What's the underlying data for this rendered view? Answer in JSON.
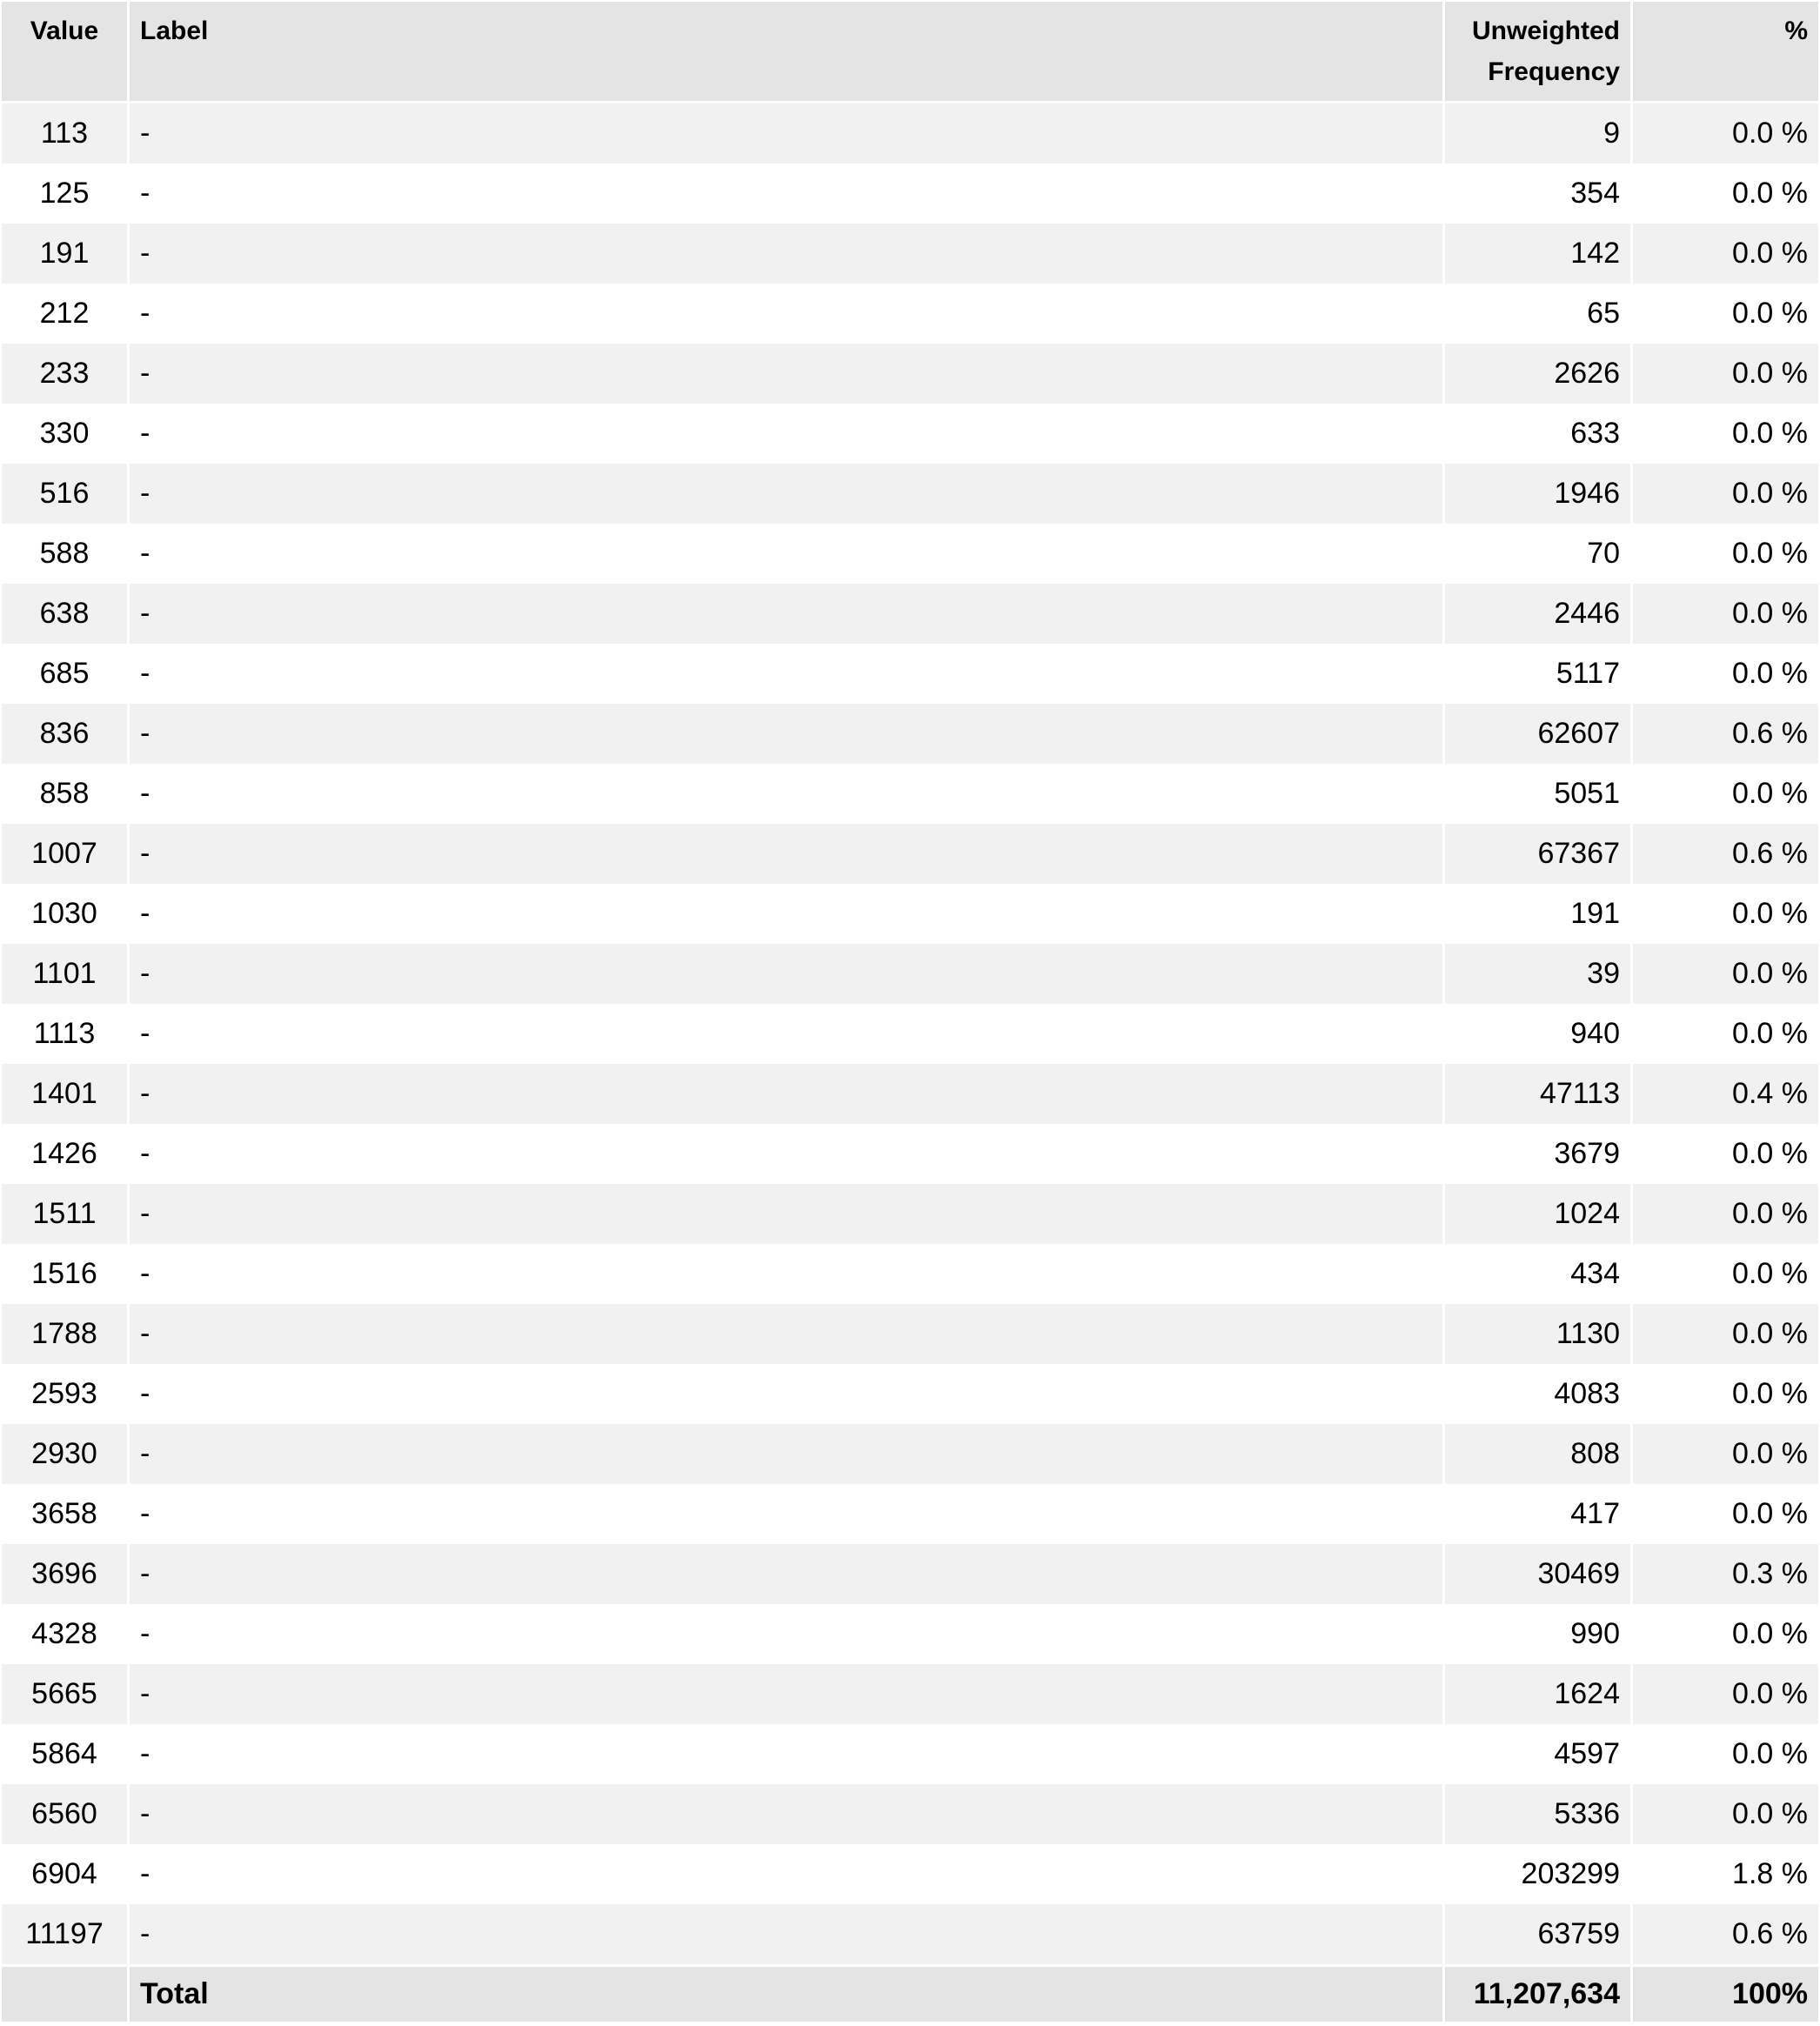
{
  "table": {
    "headers": {
      "value": "Value",
      "label": "Label",
      "frequency": "Unweighted Frequency",
      "percent": "%"
    },
    "rows": [
      {
        "value": "113",
        "label": "-",
        "frequency": "9",
        "percent": "0.0 %"
      },
      {
        "value": "125",
        "label": "-",
        "frequency": "354",
        "percent": "0.0 %"
      },
      {
        "value": "191",
        "label": "-",
        "frequency": "142",
        "percent": "0.0 %"
      },
      {
        "value": "212",
        "label": "-",
        "frequency": "65",
        "percent": "0.0 %"
      },
      {
        "value": "233",
        "label": "-",
        "frequency": "2626",
        "percent": "0.0 %"
      },
      {
        "value": "330",
        "label": "-",
        "frequency": "633",
        "percent": "0.0 %"
      },
      {
        "value": "516",
        "label": "-",
        "frequency": "1946",
        "percent": "0.0 %"
      },
      {
        "value": "588",
        "label": "-",
        "frequency": "70",
        "percent": "0.0 %"
      },
      {
        "value": "638",
        "label": "-",
        "frequency": "2446",
        "percent": "0.0 %"
      },
      {
        "value": "685",
        "label": "-",
        "frequency": "5117",
        "percent": "0.0 %"
      },
      {
        "value": "836",
        "label": "-",
        "frequency": "62607",
        "percent": "0.6 %"
      },
      {
        "value": "858",
        "label": "-",
        "frequency": "5051",
        "percent": "0.0 %"
      },
      {
        "value": "1007",
        "label": "-",
        "frequency": "67367",
        "percent": "0.6 %"
      },
      {
        "value": "1030",
        "label": "-",
        "frequency": "191",
        "percent": "0.0 %"
      },
      {
        "value": "1101",
        "label": "-",
        "frequency": "39",
        "percent": "0.0 %"
      },
      {
        "value": "1113",
        "label": "-",
        "frequency": "940",
        "percent": "0.0 %"
      },
      {
        "value": "1401",
        "label": "-",
        "frequency": "47113",
        "percent": "0.4 %"
      },
      {
        "value": "1426",
        "label": "-",
        "frequency": "3679",
        "percent": "0.0 %"
      },
      {
        "value": "1511",
        "label": "-",
        "frequency": "1024",
        "percent": "0.0 %"
      },
      {
        "value": "1516",
        "label": "-",
        "frequency": "434",
        "percent": "0.0 %"
      },
      {
        "value": "1788",
        "label": "-",
        "frequency": "1130",
        "percent": "0.0 %"
      },
      {
        "value": "2593",
        "label": "-",
        "frequency": "4083",
        "percent": "0.0 %"
      },
      {
        "value": "2930",
        "label": "-",
        "frequency": "808",
        "percent": "0.0 %"
      },
      {
        "value": "3658",
        "label": "-",
        "frequency": "417",
        "percent": "0.0 %"
      },
      {
        "value": "3696",
        "label": "-",
        "frequency": "30469",
        "percent": "0.3 %"
      },
      {
        "value": "4328",
        "label": "-",
        "frequency": "990",
        "percent": "0.0 %"
      },
      {
        "value": "5665",
        "label": "-",
        "frequency": "1624",
        "percent": "0.0 %"
      },
      {
        "value": "5864",
        "label": "-",
        "frequency": "4597",
        "percent": "0.0 %"
      },
      {
        "value": "6560",
        "label": "-",
        "frequency": "5336",
        "percent": "0.0 %"
      },
      {
        "value": "6904",
        "label": "-",
        "frequency": "203299",
        "percent": "1.8 %"
      },
      {
        "value": "11197",
        "label": "-",
        "frequency": "63759",
        "percent": "0.6 %"
      }
    ],
    "total": {
      "label": "Total",
      "frequency": "11,207,634",
      "percent": "100%"
    }
  }
}
